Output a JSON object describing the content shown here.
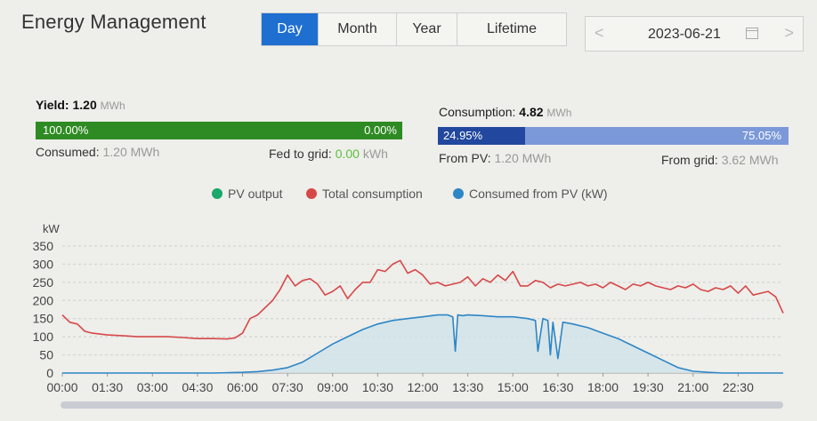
{
  "header": {
    "title": "Energy Management"
  },
  "tabs": [
    {
      "label": "Day",
      "active": true
    },
    {
      "label": "Month",
      "active": false
    },
    {
      "label": "Year",
      "active": false
    },
    {
      "label": "Lifetime",
      "active": false
    }
  ],
  "date_picker": {
    "prev": "<",
    "next": ">",
    "value": "2023-06-21"
  },
  "yield": {
    "label": "Yield:",
    "value": "1.20",
    "unit": "MWh",
    "bar_left": "100.00%",
    "bar_right": "0.00%",
    "consumed_label": "Consumed:",
    "consumed_value": "1.20",
    "consumed_unit": "MWh",
    "fed_label": "Fed to grid:",
    "fed_value": "0.00",
    "fed_unit": "kWh",
    "fraction": 1.0,
    "color": "#2e8b23"
  },
  "consumption": {
    "label": "Consumption:",
    "value": "4.82",
    "unit": "MWh",
    "bar_left": "24.95%",
    "bar_right": "75.05%",
    "pv_label": "From PV:",
    "pv_value": "1.20",
    "pv_unit": "MWh",
    "grid_label": "From grid:",
    "grid_value": "3.62",
    "grid_unit": "MWh",
    "fraction": 0.2495,
    "color_dark": "#21479e",
    "color_light": "#7b99d8"
  },
  "chart_data": {
    "type": "line",
    "ylabel": "kW",
    "ylim": [
      0,
      350
    ],
    "yticks": [
      "0",
      "50",
      "100",
      "150",
      "200",
      "250",
      "300",
      "350"
    ],
    "xlim": [
      0,
      1440
    ],
    "xticks": [
      "00:00",
      "01:30",
      "03:00",
      "04:30",
      "06:00",
      "07:30",
      "09:00",
      "10:30",
      "12:00",
      "13:30",
      "15:00",
      "16:30",
      "18:00",
      "19:30",
      "21:00",
      "22:30"
    ],
    "grid": true,
    "legend": "top-center",
    "series": [
      {
        "name": "PV output",
        "color": "#1aa86b",
        "x": [],
        "values": []
      },
      {
        "name": "Total consumption",
        "color": "#d64848",
        "x": [
          0,
          15,
          30,
          45,
          60,
          90,
          120,
          150,
          180,
          210,
          240,
          270,
          300,
          330,
          345,
          360,
          375,
          390,
          405,
          420,
          435,
          450,
          465,
          480,
          495,
          510,
          525,
          540,
          555,
          570,
          585,
          600,
          615,
          630,
          645,
          660,
          675,
          690,
          705,
          720,
          735,
          750,
          765,
          780,
          795,
          810,
          825,
          840,
          855,
          870,
          885,
          900,
          915,
          930,
          945,
          960,
          975,
          990,
          1005,
          1020,
          1035,
          1050,
          1065,
          1080,
          1095,
          1110,
          1125,
          1140,
          1155,
          1170,
          1185,
          1200,
          1215,
          1230,
          1245,
          1260,
          1275,
          1290,
          1305,
          1320,
          1335,
          1350,
          1365,
          1380,
          1395,
          1410,
          1425,
          1440
        ],
        "values": [
          160,
          140,
          135,
          115,
          110,
          105,
          103,
          100,
          100,
          100,
          98,
          95,
          95,
          94,
          97,
          110,
          150,
          160,
          180,
          200,
          230,
          270,
          240,
          255,
          260,
          245,
          215,
          225,
          240,
          205,
          230,
          250,
          250,
          285,
          280,
          300,
          310,
          275,
          285,
          270,
          245,
          250,
          240,
          245,
          250,
          265,
          240,
          260,
          250,
          270,
          255,
          280,
          240,
          240,
          255,
          250,
          235,
          245,
          240,
          245,
          250,
          240,
          245,
          235,
          250,
          240,
          230,
          245,
          240,
          250,
          240,
          235,
          230,
          240,
          235,
          245,
          230,
          225,
          235,
          230,
          240,
          220,
          240,
          215,
          220,
          225,
          210,
          165
        ]
      },
      {
        "name": "Consumed from PV (kW)",
        "color": "#2d86c6",
        "x": [
          0,
          60,
          120,
          180,
          240,
          300,
          360,
          390,
          420,
          450,
          480,
          510,
          540,
          570,
          600,
          630,
          660,
          690,
          720,
          750,
          770,
          780,
          785,
          790,
          800,
          810,
          840,
          870,
          900,
          930,
          945,
          950,
          960,
          970,
          975,
          980,
          990,
          1000,
          1020,
          1050,
          1080,
          1110,
          1140,
          1170,
          1200,
          1230,
          1260,
          1290,
          1320,
          1350,
          1380,
          1410,
          1440
        ],
        "values": [
          0,
          0,
          0,
          0,
          0,
          0,
          2,
          4,
          8,
          15,
          30,
          55,
          80,
          100,
          120,
          135,
          145,
          150,
          155,
          160,
          160,
          155,
          60,
          160,
          158,
          160,
          158,
          155,
          155,
          150,
          145,
          60,
          150,
          145,
          50,
          140,
          40,
          140,
          135,
          125,
          110,
          95,
          75,
          55,
          35,
          15,
          5,
          2,
          0,
          0,
          0,
          0,
          0
        ]
      }
    ]
  }
}
